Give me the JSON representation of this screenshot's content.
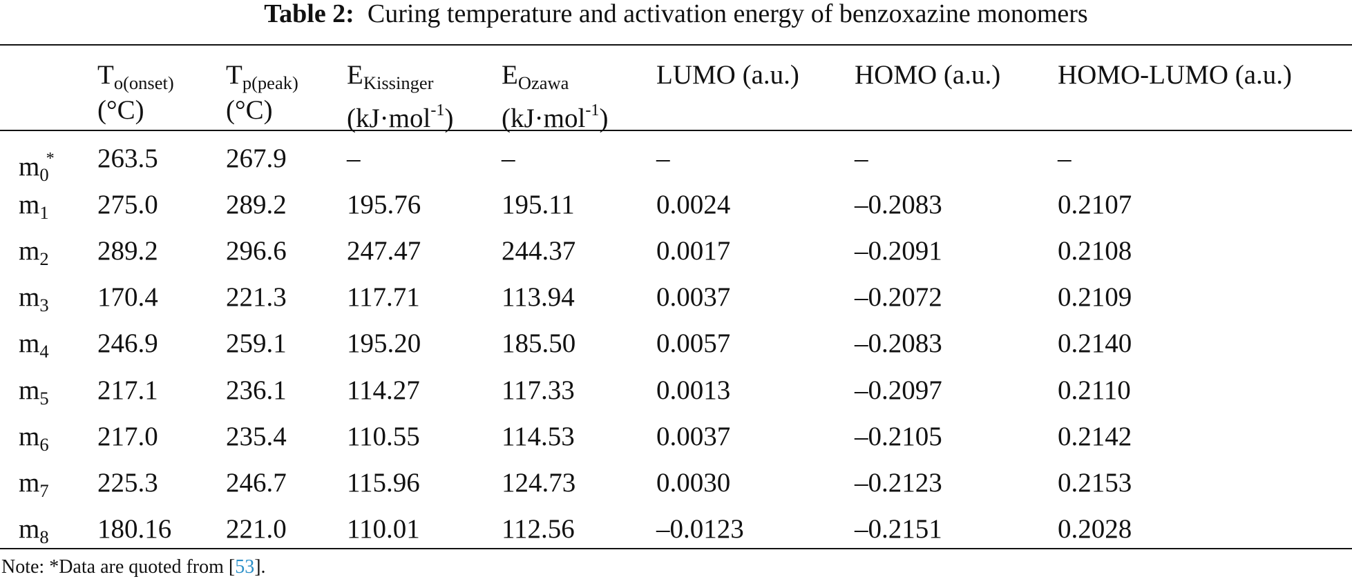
{
  "title": {
    "label": "Table 2:",
    "text": "Curing temperature and activation energy of benzoxazine monomers"
  },
  "table": {
    "columns": [
      {
        "main": "T",
        "sub": "o(onset)",
        "unit": "(°C)"
      },
      {
        "main": "T",
        "sub": "p(peak)",
        "unit": "(°C)"
      },
      {
        "main": "E",
        "sub": "Kissinger",
        "unit": "(kJ·mol",
        "unit_sup": "-1",
        "unit_end": ")"
      },
      {
        "main": "E",
        "sub": "Ozawa",
        "unit": "(kJ·mol",
        "unit_sup": "-1",
        "unit_end": ")"
      },
      {
        "main": "LUMO (a.u.)"
      },
      {
        "main": "HOMO (a.u.)"
      },
      {
        "main": "HOMO-LUMO (a.u.)"
      }
    ],
    "rows": [
      {
        "label": "m",
        "sub": "0",
        "sup": "*",
        "cells": [
          "263.5",
          "267.9",
          "–",
          "–",
          "–",
          "–",
          "–"
        ]
      },
      {
        "label": "m",
        "sub": "1",
        "cells": [
          "275.0",
          "289.2",
          "195.76",
          "195.11",
          "0.0024",
          "–0.2083",
          "0.2107"
        ]
      },
      {
        "label": "m",
        "sub": "2",
        "cells": [
          "289.2",
          "296.6",
          "247.47",
          "244.37",
          "0.0017",
          "–0.2091",
          "0.2108"
        ]
      },
      {
        "label": "m",
        "sub": "3",
        "cells": [
          "170.4",
          "221.3",
          "117.71",
          "113.94",
          "0.0037",
          "–0.2072",
          "0.2109"
        ]
      },
      {
        "label": "m",
        "sub": "4",
        "cells": [
          "246.9",
          "259.1",
          "195.20",
          "185.50",
          "0.0057",
          "–0.2083",
          "0.2140"
        ]
      },
      {
        "label": "m",
        "sub": "5",
        "cells": [
          "217.1",
          "236.1",
          "114.27",
          "117.33",
          "0.0013",
          "–0.2097",
          "0.2110"
        ]
      },
      {
        "label": "m",
        "sub": "6",
        "cells": [
          "217.0",
          "235.4",
          "110.55",
          "114.53",
          "0.0037",
          "–0.2105",
          "0.2142"
        ]
      },
      {
        "label": "m",
        "sub": "7",
        "cells": [
          "225.3",
          "246.7",
          "115.96",
          "124.73",
          "0.0030",
          "–0.2123",
          "0.2153"
        ]
      },
      {
        "label": "m",
        "sub": "8",
        "cells": [
          "180.16",
          "221.0",
          "110.01",
          "112.56",
          "–0.0123",
          "–0.2151",
          "0.2028"
        ]
      }
    ]
  },
  "note": {
    "text": "Note: *Data are quoted from [",
    "ref": "53",
    "end": "]."
  }
}
